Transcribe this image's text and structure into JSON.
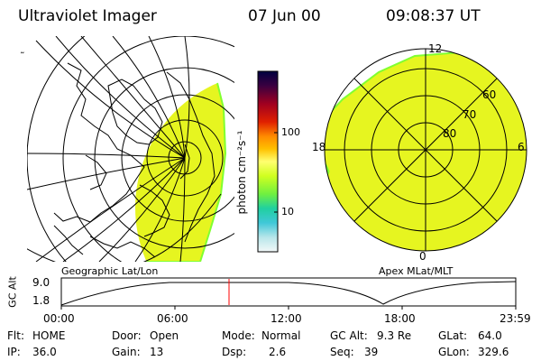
{
  "header": {
    "instrument": "Ultraviolet Imager",
    "date": "07 Jun 00",
    "time": "09:08:37 UT"
  },
  "left_panel": {
    "label": "Geographic Lat/Lon",
    "corner_mark": "˜"
  },
  "right_panel": {
    "label": "Apex MLat/MLT",
    "mlt_labels": [
      "12",
      "6",
      "0",
      "18"
    ],
    "lat_labels": [
      "60",
      "70",
      "80"
    ]
  },
  "colorbar": {
    "label": "photon cm⁻²s⁻¹",
    "ticks": [
      "100",
      "10"
    ],
    "colors": [
      "#000040",
      "#2a0040",
      "#6a0030",
      "#c00000",
      "#ff6000",
      "#ffb000",
      "#ffff60",
      "#c8ff20",
      "#80ff30",
      "#30e070",
      "#20c0c0",
      "#a0e0e0",
      "#e8f4f4"
    ]
  },
  "timeline": {
    "y_label": "GC Alt",
    "y_ticks": [
      "9.0",
      "1.8"
    ],
    "x_ticks": [
      "00:00",
      "06:00",
      "12:00",
      "18:00",
      "23:59"
    ],
    "marker_time": "09:08"
  },
  "info": {
    "row1": [
      {
        "label": "Flt:",
        "value": "HOME"
      },
      {
        "label": "Door:",
        "value": "Open"
      },
      {
        "label": "Mode:",
        "value": "Normal"
      },
      {
        "label": "GC Alt:",
        "value": "9.3 Re"
      },
      {
        "label": "GLat:",
        "value": "64.0"
      }
    ],
    "row2": [
      {
        "label": "IP:",
        "value": "36.0"
      },
      {
        "label": "Gain:",
        "value": "13"
      },
      {
        "label": "Dsp:",
        "value": "2.6"
      },
      {
        "label": "Seq:",
        "value": "39"
      },
      {
        "label": "GLon:",
        "value": "329.6"
      }
    ]
  },
  "colors": {
    "aurora_fill": "#e6f520",
    "grid": "#000000",
    "marker": "#ff0000"
  }
}
